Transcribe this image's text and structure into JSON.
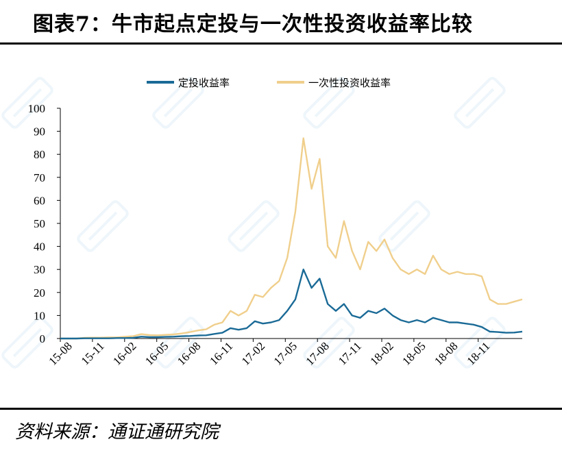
{
  "title": "图表7：牛市起点定投与一次性投资收益率比较",
  "source": "资料来源：通证通研究院",
  "chart_data": {
    "type": "line",
    "title": "",
    "xlabel": "",
    "ylabel": "",
    "ylim": [
      0,
      100
    ],
    "yticks": [
      0,
      10,
      20,
      30,
      40,
      50,
      60,
      70,
      80,
      90,
      100
    ],
    "xticks": [
      "15-08",
      "15-11",
      "16-02",
      "16-05",
      "16-08",
      "16-11",
      "17-02",
      "17-05",
      "17-08",
      "17-11",
      "18-02",
      "18-05",
      "18-08",
      "18-11"
    ],
    "legend_position": "top",
    "x": [
      "15-08",
      "15-09",
      "15-10",
      "15-11",
      "15-12",
      "16-01",
      "16-02",
      "16-03",
      "16-04",
      "16-05",
      "16-06",
      "16-07",
      "16-08",
      "16-09",
      "16-10",
      "16-11",
      "16-12",
      "17-01",
      "17-02",
      "17-03",
      "17-04",
      "17-05",
      "17-06",
      "17-07",
      "17-08",
      "17-09",
      "17-10",
      "17-11",
      "17-11b",
      "17-12",
      "17-12b",
      "18-01",
      "18-01b",
      "18-02",
      "18-02b",
      "18-03",
      "18-03b",
      "18-04",
      "18-04b",
      "18-05",
      "18-05b",
      "18-06",
      "18-06b",
      "18-07",
      "18-07b",
      "18-08",
      "18-08b",
      "18-09",
      "18-09b",
      "18-10",
      "18-10b",
      "18-11",
      "18-11b",
      "18-12",
      "18-12b",
      "19-01",
      "19-01b",
      "19-02"
    ],
    "series": [
      {
        "name": "定投收益率",
        "color": "#1a6a96",
        "values": [
          0,
          0,
          0,
          0.1,
          0.1,
          0.1,
          0.1,
          0.2,
          0.2,
          0.3,
          0.8,
          0.6,
          0.6,
          0.7,
          0.8,
          1.0,
          1.1,
          1.3,
          1.4,
          2.0,
          2.5,
          4.5,
          3.8,
          4.5,
          7.5,
          6.5,
          7,
          8,
          12,
          17,
          30,
          22,
          26,
          15,
          12,
          15,
          10,
          9,
          12,
          11,
          13,
          10,
          8,
          7,
          8,
          7,
          9,
          8,
          7,
          7,
          6.5,
          6,
          5,
          3,
          2.8,
          2.5,
          2.6,
          3.0
        ]
      },
      {
        "name": "一次性投资收益率",
        "color": "#f0cf8c",
        "values": [
          0,
          0,
          0,
          0.3,
          0.4,
          0.4,
          0.5,
          0.5,
          0.8,
          1.0,
          1.9,
          1.5,
          1.4,
          1.6,
          1.8,
          2.2,
          2.8,
          3.5,
          4.0,
          6.0,
          7.0,
          12,
          10,
          12,
          19,
          18,
          22,
          25,
          35,
          55,
          87,
          65,
          78,
          40,
          35,
          51,
          38,
          30,
          42,
          38,
          43,
          35,
          30,
          28,
          30,
          28,
          36,
          30,
          28,
          29,
          28,
          28,
          27,
          17,
          15,
          15,
          16,
          17
        ]
      }
    ]
  }
}
